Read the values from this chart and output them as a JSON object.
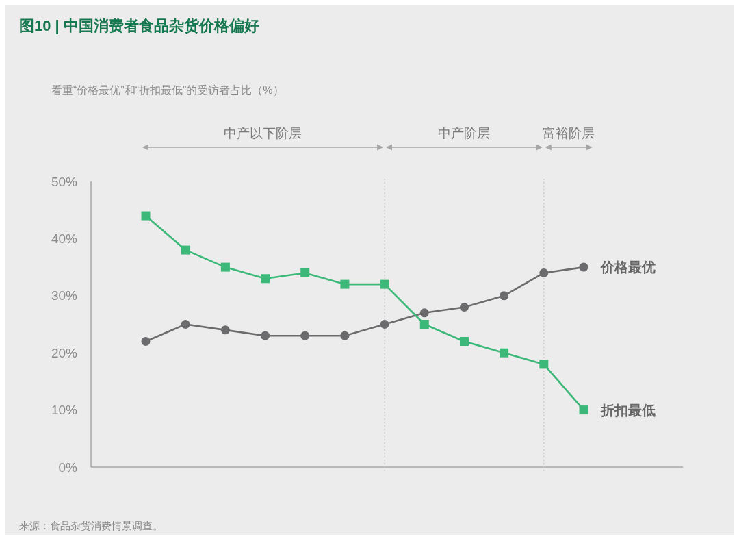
{
  "chart_data": {
    "type": "line",
    "title": "图10 | 中国消费者食品杂货价格偏好",
    "subtitle": "看重“价格最优”和“折扣最低”的受访者占比（%）",
    "categories": [
      null,
      null,
      null,
      null,
      null,
      null,
      null,
      null,
      null,
      null,
      null,
      null
    ],
    "ylim": [
      0,
      50
    ],
    "yticks": [
      {
        "value": 0,
        "label": "0%"
      },
      {
        "value": 10,
        "label": "10%"
      },
      {
        "value": 20,
        "label": "20%"
      },
      {
        "value": 30,
        "label": "30%"
      },
      {
        "value": 40,
        "label": "40%"
      },
      {
        "value": 50,
        "label": "50%"
      }
    ],
    "tick_labels": "y",
    "series": [
      {
        "name": "价格最优",
        "color": "#6b6b6d",
        "marker": "circle",
        "values": [
          22,
          25,
          24,
          23,
          23,
          23,
          25,
          27,
          28,
          30,
          34,
          35
        ]
      },
      {
        "name": "折扣最低",
        "color": "#3cb878",
        "marker": "square",
        "values": [
          44,
          38,
          35,
          33,
          34,
          32,
          32,
          25,
          22,
          20,
          18,
          10
        ]
      }
    ],
    "annotations": [
      "中产以下阶层",
      "中产阶层",
      "富裕阶层",
      "来源：食品杂货消费情景调查。"
    ]
  }
}
